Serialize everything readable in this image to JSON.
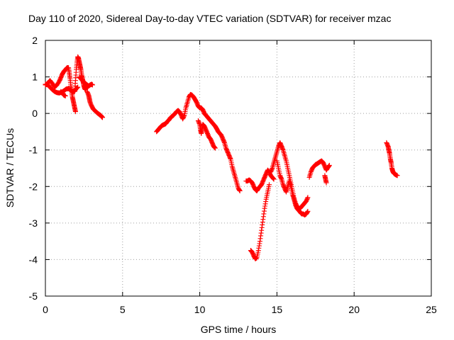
{
  "chart_data": {
    "type": "scatter",
    "title": "Day 110 of 2020, Sidereal Day-to-day VTEC variation (SDTVAR) for receiver mzac",
    "xlabel": "GPS time / hours",
    "ylabel": "SDTVAR / TECUs",
    "xlim": [
      0,
      25
    ],
    "ylim": [
      -5,
      2
    ],
    "xticks": [
      "0",
      "5",
      "10",
      "15",
      "20",
      "25"
    ],
    "yticks": [
      "2",
      "1",
      "0",
      "-1",
      "-2",
      "-3",
      "-4",
      "-5"
    ],
    "grid": true,
    "marker": "+",
    "series_color": "#ff0000",
    "series": [
      {
        "name": "SDTVAR",
        "segments": [
          [
            [
              0.0,
              0.8
            ],
            [
              0.15,
              0.78
            ],
            [
              0.3,
              0.72
            ],
            [
              0.45,
              0.65
            ],
            [
              0.6,
              0.6
            ],
            [
              0.75,
              0.57
            ],
            [
              0.9,
              0.56
            ],
            [
              1.05,
              0.58
            ],
            [
              1.2,
              0.62
            ],
            [
              1.35,
              0.67
            ],
            [
              1.5,
              0.68
            ],
            [
              1.6,
              0.65
            ],
            [
              1.7,
              0.62
            ],
            [
              1.8,
              0.6
            ],
            [
              1.9,
              0.62
            ],
            [
              2.0,
              0.68
            ],
            [
              2.1,
              0.72
            ]
          ],
          [
            [
              0.0,
              0.78
            ],
            [
              0.1,
              0.8
            ],
            [
              0.2,
              0.85
            ],
            [
              0.3,
              0.9
            ],
            [
              0.45,
              0.82
            ],
            [
              0.6,
              0.72
            ],
            [
              0.75,
              0.78
            ],
            [
              0.9,
              0.88
            ],
            [
              1.0,
              0.98
            ],
            [
              1.1,
              1.08
            ],
            [
              1.2,
              1.15
            ],
            [
              1.3,
              1.2
            ],
            [
              1.4,
              1.25
            ],
            [
              1.5,
              1.25
            ],
            [
              1.55,
              1.1
            ],
            [
              1.6,
              0.95
            ],
            [
              1.65,
              0.75
            ],
            [
              1.7,
              0.6
            ],
            [
              1.75,
              0.45
            ],
            [
              1.8,
              0.35
            ],
            [
              1.85,
              0.25
            ],
            [
              1.9,
              0.15
            ],
            [
              1.95,
              0.05
            ]
          ],
          [
            [
              1.0,
              0.6
            ],
            [
              1.1,
              0.55
            ],
            [
              1.2,
              0.5
            ],
            [
              1.3,
              0.48
            ]
          ],
          [
            [
              1.9,
              0.6
            ],
            [
              1.95,
              0.9
            ],
            [
              2.0,
              1.2
            ],
            [
              2.05,
              1.4
            ],
            [
              2.1,
              1.55
            ],
            [
              2.15,
              1.5
            ],
            [
              2.2,
              1.4
            ],
            [
              2.25,
              1.3
            ],
            [
              2.3,
              1.2
            ],
            [
              2.35,
              1.05
            ],
            [
              2.4,
              0.95
            ],
            [
              2.45,
              0.85
            ],
            [
              2.5,
              0.75
            ],
            [
              2.55,
              0.68
            ],
            [
              2.6,
              0.65
            ],
            [
              2.65,
              0.72
            ],
            [
              2.7,
              0.78
            ]
          ],
          [
            [
              2.2,
              1.0
            ],
            [
              2.3,
              0.95
            ],
            [
              2.4,
              0.9
            ],
            [
              2.5,
              0.85
            ],
            [
              2.6,
              0.82
            ],
            [
              2.7,
              0.78
            ],
            [
              2.8,
              0.75
            ],
            [
              2.9,
              0.78
            ],
            [
              3.0,
              0.8
            ],
            [
              3.05,
              0.78
            ]
          ],
          [
            [
              2.7,
              0.6
            ],
            [
              2.8,
              0.5
            ],
            [
              2.85,
              0.4
            ],
            [
              2.9,
              0.3
            ],
            [
              3.0,
              0.2
            ],
            [
              3.1,
              0.12
            ],
            [
              3.2,
              0.08
            ],
            [
              3.3,
              0.04
            ],
            [
              3.4,
              0.0
            ],
            [
              3.5,
              -0.03
            ],
            [
              3.6,
              -0.06
            ],
            [
              3.65,
              -0.09
            ],
            [
              3.7,
              -0.11
            ]
          ],
          [
            [
              7.2,
              -0.5
            ],
            [
              7.3,
              -0.45
            ],
            [
              7.4,
              -0.4
            ],
            [
              7.5,
              -0.35
            ],
            [
              7.6,
              -0.32
            ],
            [
              7.7,
              -0.3
            ],
            [
              7.8,
              -0.28
            ],
            [
              7.9,
              -0.22
            ],
            [
              8.0,
              -0.18
            ],
            [
              8.1,
              -0.12
            ],
            [
              8.2,
              -0.08
            ],
            [
              8.3,
              -0.05
            ],
            [
              8.4,
              0.0
            ],
            [
              8.5,
              0.05
            ],
            [
              8.6,
              0.08
            ],
            [
              8.7,
              0.04
            ],
            [
              8.8,
              -0.05
            ],
            [
              8.9,
              -0.15
            ],
            [
              9.0,
              -0.05
            ],
            [
              9.1,
              0.15
            ],
            [
              9.2,
              0.3
            ],
            [
              9.3,
              0.45
            ],
            [
              9.4,
              0.52
            ],
            [
              9.5,
              0.5
            ],
            [
              9.6,
              0.45
            ],
            [
              9.7,
              0.38
            ],
            [
              9.8,
              0.3
            ],
            [
              9.9,
              0.2
            ],
            [
              10.0,
              0.15
            ],
            [
              10.1,
              0.15
            ],
            [
              10.2,
              0.1
            ],
            [
              10.3,
              0.0
            ],
            [
              10.4,
              -0.05
            ],
            [
              10.5,
              -0.1
            ],
            [
              10.6,
              -0.15
            ],
            [
              10.7,
              -0.2
            ],
            [
              10.8,
              -0.25
            ],
            [
              10.9,
              -0.3
            ],
            [
              11.0,
              -0.35
            ],
            [
              11.1,
              -0.42
            ],
            [
              11.2,
              -0.5
            ],
            [
              11.3,
              -0.55
            ],
            [
              11.4,
              -0.6
            ],
            [
              11.5,
              -0.7
            ],
            [
              11.6,
              -0.8
            ],
            [
              11.7,
              -0.95
            ],
            [
              11.8,
              -1.05
            ],
            [
              11.9,
              -1.15
            ],
            [
              12.0,
              -1.25
            ],
            [
              12.1,
              -1.45
            ],
            [
              12.2,
              -1.6
            ],
            [
              12.3,
              -1.75
            ],
            [
              12.4,
              -1.9
            ],
            [
              12.5,
              -2.05
            ],
            [
              12.6,
              -2.12
            ]
          ],
          [
            [
              9.9,
              -0.2
            ],
            [
              10.0,
              -0.3
            ],
            [
              10.05,
              -0.45
            ],
            [
              10.1,
              -0.55
            ],
            [
              10.15,
              -0.4
            ],
            [
              10.2,
              -0.3
            ],
            [
              10.3,
              -0.35
            ],
            [
              10.4,
              -0.45
            ],
            [
              10.5,
              -0.55
            ],
            [
              10.6,
              -0.65
            ],
            [
              10.7,
              -0.7
            ],
            [
              10.8,
              -0.8
            ],
            [
              10.9,
              -0.9
            ],
            [
              11.0,
              -0.95
            ]
          ],
          [
            [
              13.0,
              -1.85
            ],
            [
              13.1,
              -1.85
            ],
            [
              13.2,
              -1.82
            ],
            [
              13.3,
              -1.85
            ],
            [
              13.4,
              -1.9
            ],
            [
              13.5,
              -2.0
            ],
            [
              13.6,
              -2.08
            ],
            [
              13.7,
              -2.12
            ],
            [
              13.8,
              -2.05
            ],
            [
              13.9,
              -2.0
            ],
            [
              14.0,
              -1.95
            ],
            [
              14.1,
              -1.85
            ],
            [
              14.2,
              -1.75
            ],
            [
              14.3,
              -1.65
            ],
            [
              14.4,
              -1.55
            ],
            [
              14.5,
              -1.6
            ],
            [
              14.6,
              -1.7
            ],
            [
              14.7,
              -1.75
            ],
            [
              14.8,
              -1.8
            ]
          ],
          [
            [
              13.3,
              -3.75
            ],
            [
              13.4,
              -3.8
            ],
            [
              13.5,
              -3.9
            ],
            [
              13.6,
              -3.98
            ],
            [
              13.7,
              -3.95
            ],
            [
              13.8,
              -3.75
            ],
            [
              13.9,
              -3.5
            ],
            [
              14.0,
              -3.2
            ],
            [
              14.1,
              -2.9
            ],
            [
              14.2,
              -2.6
            ],
            [
              14.3,
              -2.35
            ],
            [
              14.4,
              -2.15
            ],
            [
              14.5,
              -1.95
            ]
          ],
          [
            [
              14.6,
              -1.6
            ],
            [
              14.7,
              -1.5
            ],
            [
              14.8,
              -1.35
            ],
            [
              14.9,
              -1.2
            ],
            [
              15.0,
              -1.05
            ],
            [
              15.1,
              -0.9
            ],
            [
              15.2,
              -0.8
            ],
            [
              15.3,
              -0.9
            ],
            [
              15.4,
              -1.0
            ],
            [
              15.5,
              -1.15
            ],
            [
              15.6,
              -1.3
            ],
            [
              15.7,
              -1.5
            ],
            [
              15.8,
              -1.7
            ],
            [
              15.9,
              -1.9
            ],
            [
              16.0,
              -2.1
            ],
            [
              16.1,
              -2.3
            ],
            [
              16.2,
              -2.45
            ],
            [
              16.3,
              -2.55
            ],
            [
              16.4,
              -2.6
            ],
            [
              16.5,
              -2.6
            ],
            [
              16.6,
              -2.55
            ],
            [
              16.7,
              -2.5
            ],
            [
              16.8,
              -2.45
            ],
            [
              16.9,
              -2.4
            ],
            [
              17.0,
              -2.3
            ]
          ],
          [
            [
              15.0,
              -1.3
            ],
            [
              15.1,
              -1.5
            ],
            [
              15.2,
              -1.7
            ],
            [
              15.3,
              -1.8
            ],
            [
              15.4,
              -1.95
            ],
            [
              15.5,
              -2.05
            ],
            [
              15.6,
              -2.15
            ],
            [
              15.7,
              -2.0
            ],
            [
              15.8,
              -1.85
            ],
            [
              15.9,
              -2.0
            ],
            [
              16.0,
              -2.2
            ],
            [
              16.1,
              -2.35
            ],
            [
              16.2,
              -2.5
            ],
            [
              16.3,
              -2.6
            ],
            [
              16.4,
              -2.65
            ],
            [
              16.5,
              -2.7
            ],
            [
              16.6,
              -2.75
            ],
            [
              16.7,
              -2.75
            ],
            [
              16.8,
              -2.78
            ],
            [
              16.9,
              -2.75
            ],
            [
              17.0,
              -2.68
            ]
          ],
          [
            [
              17.1,
              -1.75
            ],
            [
              17.2,
              -1.6
            ],
            [
              17.3,
              -1.5
            ],
            [
              17.4,
              -1.45
            ],
            [
              17.5,
              -1.4
            ],
            [
              17.6,
              -1.38
            ],
            [
              17.7,
              -1.35
            ],
            [
              17.8,
              -1.32
            ],
            [
              17.9,
              -1.3
            ],
            [
              18.0,
              -1.35
            ],
            [
              18.1,
              -1.45
            ],
            [
              18.2,
              -1.55
            ],
            [
              18.3,
              -1.48
            ],
            [
              18.4,
              -1.42
            ]
          ],
          [
            [
              18.1,
              -1.7
            ],
            [
              18.15,
              -1.8
            ],
            [
              18.2,
              -1.9
            ]
          ],
          [
            [
              22.1,
              -0.8
            ],
            [
              22.2,
              -0.9
            ],
            [
              22.25,
              -1.0
            ],
            [
              22.3,
              -1.1
            ],
            [
              22.35,
              -1.25
            ],
            [
              22.4,
              -1.35
            ],
            [
              22.45,
              -1.5
            ],
            [
              22.5,
              -1.58
            ],
            [
              22.55,
              -1.62
            ],
            [
              22.6,
              -1.65
            ],
            [
              22.7,
              -1.68
            ],
            [
              22.8,
              -1.7
            ]
          ]
        ]
      }
    ]
  }
}
